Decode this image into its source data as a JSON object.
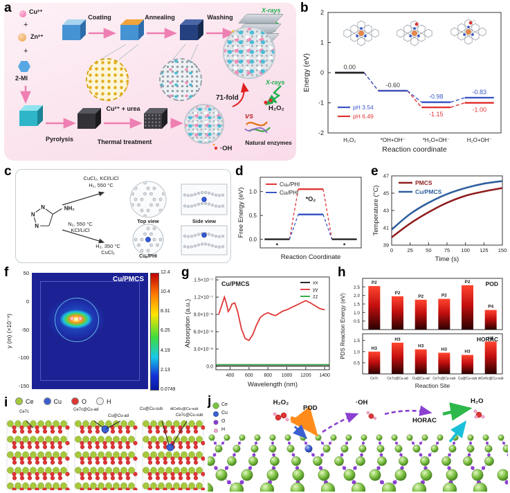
{
  "panel_letters": [
    "a",
    "b",
    "c",
    "d",
    "e",
    "f",
    "g",
    "h",
    "i",
    "j"
  ],
  "panels": {
    "a": {
      "cu": "Cu²⁺",
      "zn": "Zn²⁺",
      "mi": "2-MI",
      "plus": "+",
      "coating": "Coating",
      "annealing": "Annealing",
      "washing": "Washing",
      "pyrolysis": "Pyrolysis",
      "cu_urea": "Cu²⁺ + urea",
      "thermal": "Thermal treatment",
      "xrays": "X-rays",
      "fold": "71-fold",
      "vs": "vs",
      "h2o2": "H₂O₂",
      "enzymes": "Natural enzymes",
      "oh": "·OH"
    },
    "c": {
      "n": "N",
      "nh2": "NH₂",
      "route1": [
        "CuCl₂, KCl/LiCl",
        "H₂, 550 °C"
      ],
      "route2": [
        "N₂, 550 °C",
        "KCl/LiCl"
      ],
      "route3": [
        "H₂, 350 °C",
        "CuCl₂"
      ],
      "cap_top": "Top view",
      "cap_side": "Side view",
      "cap_cup": "Cuₚ/PHI"
    },
    "i": {
      "legend": [
        {
          "label": "Ce",
          "color": "#a6c83c"
        },
        {
          "label": "Cu",
          "color": "#3a5fd0"
        },
        {
          "label": "O",
          "color": "#e03434"
        },
        {
          "label": "H",
          "color": "#f2f2f2"
        }
      ],
      "labels": [
        "Ce7c",
        "Ce7c@Cu-ad",
        "Cu@Cu-ad",
        "Cu@Cu-sub",
        "diCe6c@Cu-sub",
        "Ce7c@Cu-sub"
      ]
    },
    "j": {
      "legend": [
        {
          "label": "Ce",
          "color": "#79c143"
        },
        {
          "label": "Cu",
          "color": "#3a5fd0"
        },
        {
          "label": "O",
          "color": "#8a3fd1"
        },
        {
          "label": "H",
          "color": "#f8a8cc"
        }
      ],
      "h2o2": "H₂O₂",
      "pod": "POD",
      "oh": "·OH",
      "horac": "HORAC",
      "h2o": "H₂O"
    }
  },
  "chart_data": [
    {
      "panel": "b",
      "type": "step-line",
      "xlabel": "Reaction coordinate",
      "ylabel": "Energy (eV)",
      "ylim": [
        -2,
        2
      ],
      "yticks": [
        -2,
        -1,
        0,
        1,
        2
      ],
      "categories": [
        "H₂O₂",
        "*OH+OH⁻",
        "*H₂O+OH⁻",
        "H₂O+OH⁻"
      ],
      "series": [
        {
          "name": "pH 3.54",
          "color": "#3a56c5",
          "values": [
            0.0,
            -0.6,
            -0.98,
            -0.83
          ]
        },
        {
          "name": "pH 6.49",
          "color": "#e03434",
          "values": [
            0.0,
            -0.6,
            -1.15,
            -1.0
          ]
        }
      ],
      "value_labels": [
        {
          "pi": 0,
          "e": 0.0,
          "text": "0.00",
          "color": "#333333",
          "pos": "above"
        },
        {
          "pi": 1,
          "e": -0.6,
          "text": "-0.60",
          "color": "#333333",
          "pos": "above"
        },
        {
          "pi": 2,
          "e": -0.98,
          "text": "-0.98",
          "color": "#3a56c5",
          "pos": "above"
        },
        {
          "pi": 2,
          "e": -1.15,
          "text": "-1.15",
          "color": "#e03434",
          "pos": "below"
        },
        {
          "pi": 3,
          "e": -0.83,
          "text": "-0.83",
          "color": "#3a56c5",
          "pos": "above"
        },
        {
          "pi": 3,
          "e": -1.0,
          "text": "-1.00",
          "color": "#e03434",
          "pos": "below"
        }
      ]
    },
    {
      "panel": "d",
      "type": "step-line",
      "xlabel": "Reaction Coordinate",
      "ylabel": "Free Energy (eV)",
      "ylim": [
        -0.18,
        1.3
      ],
      "yticks": [
        0.0,
        0.5,
        1.0
      ],
      "shared_plateaus": [
        0,
        2
      ],
      "plateau_labels": [
        {
          "pi": 0,
          "e": 0.0,
          "text": "*",
          "pos": "below"
        },
        {
          "pi": 1,
          "e": 0.8,
          "text": "*O₂",
          "pos": "mid"
        },
        {
          "pi": 2,
          "e": 0.0,
          "text": "*",
          "pos": "below"
        }
      ],
      "series": [
        {
          "name": "Cuₚ/PHI",
          "color": "#e03434",
          "values": [
            0.0,
            1.05,
            0.0
          ]
        },
        {
          "name": "Cuₗ/PHI",
          "color": "#3a56c5",
          "values": [
            0.0,
            0.52,
            0.0
          ]
        }
      ]
    },
    {
      "panel": "e",
      "type": "line",
      "xlabel": "Time (s)",
      "ylabel": "Temperature (°C)",
      "xlim": [
        0,
        150
      ],
      "ylim": [
        39,
        47
      ],
      "xticks": [
        0,
        25,
        50,
        75,
        100,
        125,
        150
      ],
      "yticks": [
        39,
        41,
        43,
        45,
        47
      ],
      "series": [
        {
          "name": "PMCS",
          "color": "#8f1d1d",
          "x": [
            0,
            25,
            50,
            75,
            100,
            125,
            150
          ],
          "y": [
            39.9,
            41.5,
            42.8,
            43.9,
            44.7,
            45.2,
            45.6
          ]
        },
        {
          "name": "Cu/PMCS",
          "color": "#2f5f9e",
          "x": [
            0,
            25,
            50,
            75,
            100,
            125,
            150
          ],
          "y": [
            40.8,
            42.6,
            43.9,
            44.9,
            45.6,
            46.1,
            46.4
          ]
        }
      ]
    },
    {
      "panel": "f",
      "type": "heatmap",
      "title": "Cu/PMCS",
      "ylabel": "y (m) (×10⁻⁹)",
      "yticks": [
        "50",
        "0",
        "-50",
        "-100",
        "-150"
      ],
      "colorbar_ticks": [
        "12.4",
        "10.4",
        "8.31",
        "6.25",
        "4.19",
        "2.13",
        "0.0749"
      ]
    },
    {
      "panel": "g",
      "type": "line",
      "title": "Cu/PMCS",
      "xlabel": "Wavelength (nm)",
      "ylabel": "Absorption (a.u.)",
      "xlim": [
        250,
        1450
      ],
      "ylim": [
        -6e-09,
        1.55e-07
      ],
      "xticks": [
        400,
        600,
        800,
        1000,
        1200,
        1400
      ],
      "ytick_values": [
        0,
        3e-08,
        6e-08,
        9e-08,
        1.2e-07,
        1.5e-07
      ],
      "ytick_labels": [
        "0.0",
        "3.0×10⁻⁸",
        "6.0×10⁻⁸",
        "9.0×10⁻⁸",
        "1.2×10⁻⁷",
        "1.5×10⁻⁷"
      ],
      "series": [
        {
          "name": "xx",
          "color": "#111111",
          "x": [
            250,
            1450
          ],
          "y": [
            5e-10,
            5e-10
          ]
        },
        {
          "name": "yy",
          "color": "#e03434",
          "x": [
            280,
            310,
            340,
            360,
            380,
            400,
            420,
            450,
            480,
            520,
            560,
            600,
            640,
            680,
            720,
            760,
            800,
            840,
            880,
            920,
            960,
            1000,
            1050,
            1100,
            1150,
            1200,
            1250,
            1300,
            1350,
            1400
          ],
          "y": [
            9e-08,
            1.05e-07,
            1.2e-07,
            1.1e-07,
            9.5e-08,
            1e-07,
            1.08e-07,
            1.1e-07,
            9.5e-08,
            6.5e-08,
            4.8e-08,
            4.5e-08,
            5.5e-08,
            7.2e-08,
            8.5e-08,
            9e-08,
            9.3e-08,
            9e-08,
            8.8e-08,
            9.2e-08,
            9.6e-08,
            9.8e-08,
            1.02e-07,
            1.06e-07,
            1.1e-07,
            1.14e-07,
            1.1e-07,
            1.05e-07,
            1e-07,
            9.8e-08
          ]
        },
        {
          "name": "zz",
          "color": "#22a038",
          "x": [
            250,
            1450
          ],
          "y": [
            3e-09,
            3e-09
          ]
        }
      ]
    },
    {
      "panel": "h",
      "type": "bar",
      "xlabel": "Reaction Site",
      "ylabel": "PDS Reaction Energy (eV)",
      "categories": [
        "Ce7c",
        "Ce7c@Cu-ad",
        "Cu@Cu-ad",
        "Ce7c@Cu-sub",
        "Cu@Cu-sub",
        "diCe6c@Cu-sub"
      ],
      "subpanels": [
        {
          "name": "POD",
          "ylim": [
            0,
            3.0
          ],
          "yticks": [
            0.5,
            1.0,
            1.5,
            2.0,
            2.5
          ],
          "values": [
            2.55,
            1.95,
            1.75,
            1.8,
            2.6,
            1.15
          ],
          "bar_labels": [
            "P2",
            "P2",
            "P2",
            "P2",
            "P2",
            "P4"
          ]
        },
        {
          "name": "HORAC",
          "ylim": [
            0,
            1.8
          ],
          "yticks": [
            0.5,
            1.0,
            1.5
          ],
          "values": [
            1.0,
            1.4,
            1.1,
            0.95,
            0.85,
            1.45
          ],
          "bar_labels": [
            "H3",
            "H3",
            "H3",
            "H3",
            "H3",
            "H6"
          ]
        }
      ]
    }
  ]
}
